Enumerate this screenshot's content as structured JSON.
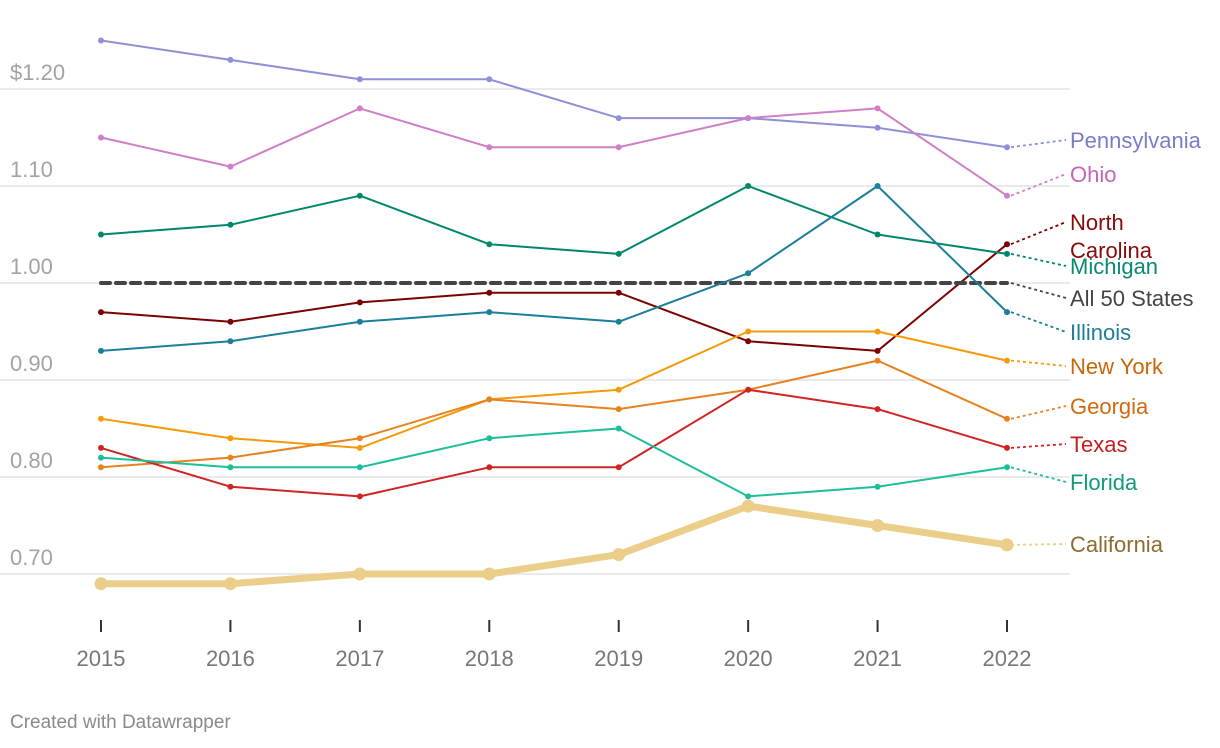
{
  "chart_data": {
    "type": "line",
    "title": "",
    "xlabel": "",
    "ylabel": "",
    "x": [
      "2015",
      "2016",
      "2017",
      "2018",
      "2019",
      "2020",
      "2021",
      "2022"
    ],
    "ylim": [
      0.65,
      1.275
    ],
    "y_ticks": [
      {
        "value": 0.7,
        "label": "0.70"
      },
      {
        "value": 0.8,
        "label": "0.80"
      },
      {
        "value": 0.9,
        "label": "0.90"
      },
      {
        "value": 1.0,
        "label": "1.00"
      },
      {
        "value": 1.1,
        "label": "1.10"
      },
      {
        "value": 1.2,
        "label": "$1.20"
      }
    ],
    "grid": true,
    "series": [
      {
        "name": "Pennsylvania",
        "label_lines": [
          "Pennsylvania"
        ],
        "color": "#8f90d6",
        "label_color": "#7b7cc9",
        "style": "solid",
        "values": [
          1.25,
          1.23,
          1.21,
          1.21,
          1.17,
          1.17,
          1.16,
          1.14
        ]
      },
      {
        "name": "Ohio",
        "label_lines": [
          "Ohio"
        ],
        "color": "#d07ec7",
        "label_color": "#c267b7",
        "style": "solid",
        "values": [
          1.15,
          1.12,
          1.18,
          1.14,
          1.14,
          1.17,
          1.18,
          1.09
        ]
      },
      {
        "name": "North Carolina",
        "label_lines": [
          "North",
          "Carolina"
        ],
        "color": "#7d0000",
        "label_color": "#8a0a0a",
        "style": "solid",
        "values": [
          0.97,
          0.96,
          0.98,
          0.99,
          0.99,
          0.94,
          0.93,
          1.04
        ]
      },
      {
        "name": "Michigan",
        "label_lines": [
          "Michigan"
        ],
        "color": "#00876b",
        "label_color": "#0a8a6e",
        "style": "solid",
        "values": [
          1.05,
          1.06,
          1.09,
          1.04,
          1.03,
          1.1,
          1.05,
          1.03
        ]
      },
      {
        "name": "All 50 States",
        "label_lines": [
          "All 50 States"
        ],
        "color": "#444444",
        "label_color": "#444444",
        "style": "dashed",
        "values": [
          1.0,
          1.0,
          1.0,
          1.0,
          1.0,
          1.0,
          1.0,
          1.0
        ]
      },
      {
        "name": "Illinois",
        "label_lines": [
          "Illinois"
        ],
        "color": "#1b7f9a",
        "label_color": "#1b7f9a",
        "style": "solid",
        "values": [
          0.93,
          0.94,
          0.96,
          0.97,
          0.96,
          1.01,
          1.1,
          0.97
        ]
      },
      {
        "name": "New York",
        "label_lines": [
          "New York"
        ],
        "color": "#f59a0a",
        "label_color": "#c8660a",
        "style": "solid",
        "values": [
          0.86,
          0.84,
          0.83,
          0.88,
          0.89,
          0.95,
          0.95,
          0.92
        ]
      },
      {
        "name": "Georgia",
        "label_lines": [
          "Georgia"
        ],
        "color": "#e8821e",
        "label_color": "#d06a0e",
        "style": "solid",
        "values": [
          0.81,
          0.82,
          0.84,
          0.88,
          0.87,
          0.89,
          0.92,
          0.86
        ]
      },
      {
        "name": "Texas",
        "label_lines": [
          "Texas"
        ],
        "color": "#cf2424",
        "label_color": "#c21e1e",
        "style": "solid",
        "values": [
          0.83,
          0.79,
          0.78,
          0.81,
          0.81,
          0.89,
          0.87,
          0.83
        ]
      },
      {
        "name": "Florida",
        "label_lines": [
          "Florida"
        ],
        "color": "#1cbf9a",
        "label_color": "#0f9c7b",
        "style": "solid",
        "values": [
          0.82,
          0.81,
          0.81,
          0.84,
          0.85,
          0.78,
          0.79,
          0.81
        ]
      },
      {
        "name": "California",
        "label_lines": [
          "California"
        ],
        "color": "#ebce8a",
        "label_color": "#8c6d2f",
        "style": "thick",
        "values": [
          0.69,
          0.69,
          0.7,
          0.7,
          0.72,
          0.77,
          0.75,
          0.73
        ]
      }
    ]
  },
  "credit": "Created with Datawrapper"
}
